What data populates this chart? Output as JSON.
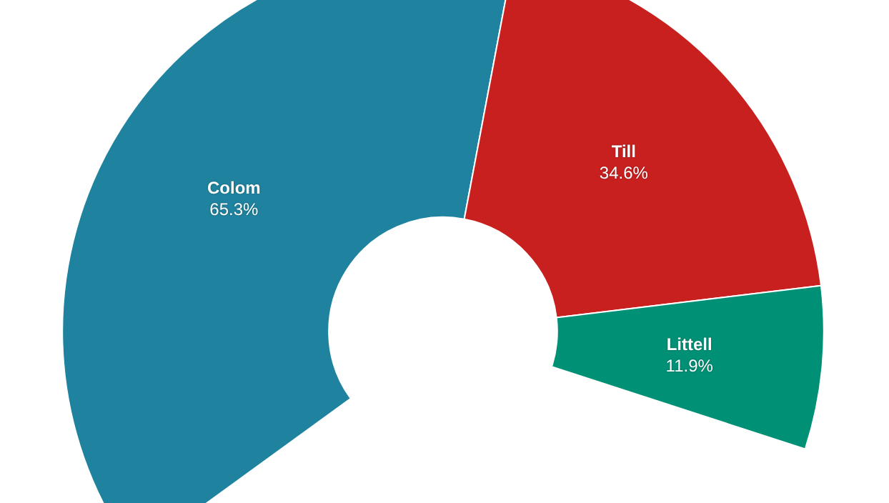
{
  "chart_data": {
    "type": "donut",
    "categories": [
      "Colom",
      "Till",
      "Littell"
    ],
    "values": [
      65.3,
      34.6,
      11.9
    ],
    "value_labels": [
      "65.3%",
      "34.6%",
      "11.9%"
    ],
    "colors": [
      "#1f83a0",
      "#c8201f",
      "#009075"
    ],
    "legend": false
  }
}
